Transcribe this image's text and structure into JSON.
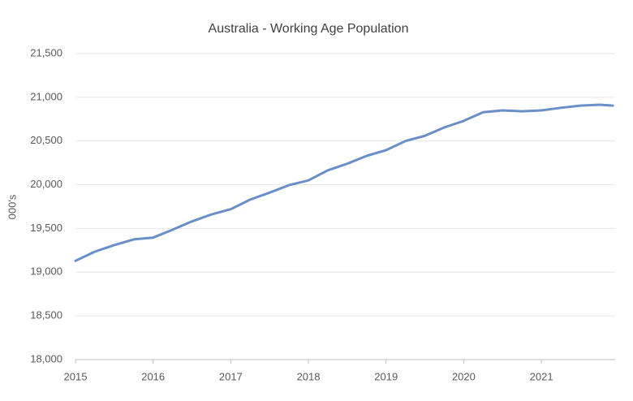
{
  "chart_data": {
    "type": "line",
    "title": "Australia - Working Age Population",
    "y_label": "000's",
    "x": [
      2015,
      2015.25,
      2015.5,
      2015.75,
      2016,
      2016.25,
      2016.5,
      2016.75,
      2017,
      2017.25,
      2017.5,
      2017.75,
      2018,
      2018.25,
      2018.5,
      2018.75,
      2019,
      2019.25,
      2019.5,
      2019.75,
      2020,
      2020.25,
      2020.5,
      2020.75,
      2021,
      2021.25,
      2021.5,
      2021.75,
      2021.92
    ],
    "series": [
      {
        "name": "Working Age Population",
        "color": "#6a8fc8",
        "values": [
          19130,
          19235,
          19310,
          19375,
          19395,
          19485,
          19580,
          19660,
          19720,
          19830,
          19910,
          19995,
          20050,
          20165,
          20240,
          20330,
          20395,
          20500,
          20560,
          20655,
          20730,
          20830,
          20850,
          20840,
          20850,
          20880,
          20905,
          20915,
          20905
        ]
      }
    ],
    "xlim": [
      2015,
      2021.95
    ],
    "xticks": [
      2015,
      2016,
      2017,
      2018,
      2019,
      2020,
      2021
    ],
    "ylim": [
      18000,
      21500
    ],
    "yticks": [
      {
        "value": 18000,
        "label": "18,000"
      },
      {
        "value": 18500,
        "label": "18,500"
      },
      {
        "value": 19000,
        "label": "19,000"
      },
      {
        "value": 19500,
        "label": "19,500"
      },
      {
        "value": 20000,
        "label": "20,000"
      },
      {
        "value": 20500,
        "label": "20,500"
      },
      {
        "value": 21000,
        "label": "21,000"
      },
      {
        "value": 21500,
        "label": "21,500"
      }
    ],
    "grid": true
  }
}
